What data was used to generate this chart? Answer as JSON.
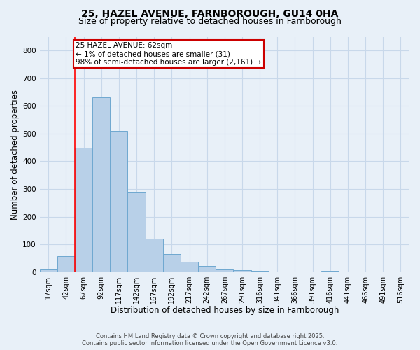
{
  "title_line1": "25, HAZEL AVENUE, FARNBOROUGH, GU14 0HA",
  "title_line2": "Size of property relative to detached houses in Farnborough",
  "xlabel": "Distribution of detached houses by size in Farnborough",
  "ylabel": "Number of detached properties",
  "bar_labels": [
    "17sqm",
    "42sqm",
    "67sqm",
    "92sqm",
    "117sqm",
    "142sqm",
    "167sqm",
    "192sqm",
    "217sqm",
    "242sqm",
    "267sqm",
    "291sqm",
    "316sqm",
    "341sqm",
    "366sqm",
    "391sqm",
    "416sqm",
    "441sqm",
    "466sqm",
    "491sqm",
    "516sqm"
  ],
  "bar_heights": [
    10,
    57,
    450,
    630,
    510,
    290,
    120,
    65,
    37,
    22,
    10,
    7,
    5,
    0,
    0,
    0,
    4,
    0,
    0,
    0,
    0
  ],
  "bar_color": "#b8d0e8",
  "bar_edge_color": "#6fa8d0",
  "grid_color": "#c8d8ea",
  "background_color": "#e8f0f8",
  "red_line_index": 2,
  "annotation_text_line1": "25 HAZEL AVENUE: 62sqm",
  "annotation_text_line2": "← 1% of detached houses are smaller (31)",
  "annotation_text_line3": "98% of semi-detached houses are larger (2,161) →",
  "annotation_box_facecolor": "#ffffff",
  "annotation_box_edgecolor": "#cc0000",
  "footer_line1": "Contains HM Land Registry data © Crown copyright and database right 2025.",
  "footer_line2": "Contains public sector information licensed under the Open Government Licence v3.0.",
  "ylim": [
    0,
    850
  ],
  "yticks": [
    0,
    100,
    200,
    300,
    400,
    500,
    600,
    700,
    800
  ],
  "title1_fontsize": 10,
  "title2_fontsize": 9,
  "xlabel_fontsize": 8.5,
  "ylabel_fontsize": 8.5,
  "tick_fontsize": 7,
  "annotation_fontsize": 7.5,
  "footer_fontsize": 6
}
